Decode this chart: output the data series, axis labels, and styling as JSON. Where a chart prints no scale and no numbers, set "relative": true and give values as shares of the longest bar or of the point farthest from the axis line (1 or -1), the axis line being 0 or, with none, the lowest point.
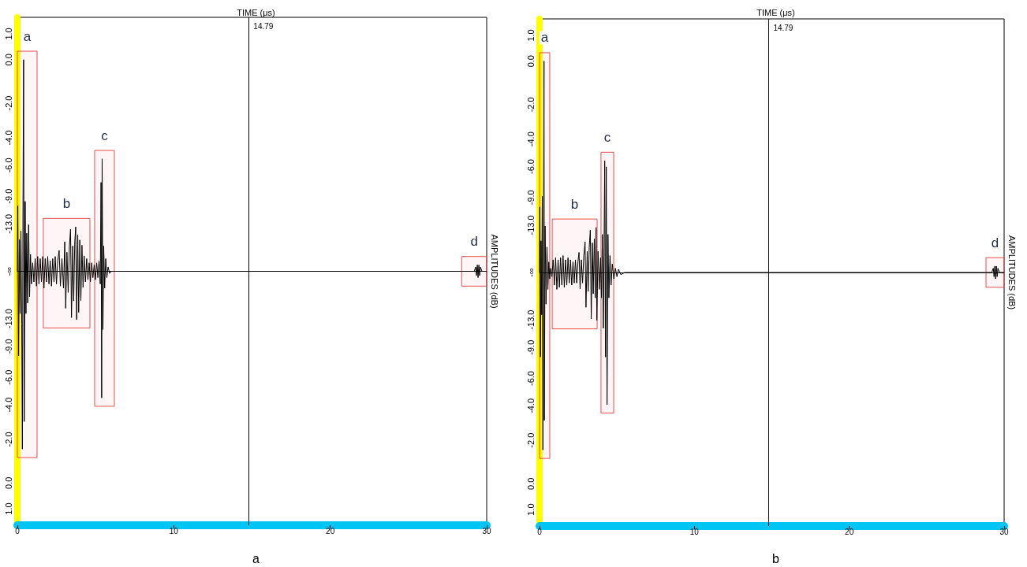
{
  "chart_data": [
    {
      "type": "line",
      "title": "a",
      "xlabel": "TIME (μs)",
      "ylabel": "AMPLITUDES (dB)",
      "xlim": [
        0,
        30
      ],
      "xticks": [
        0,
        10,
        20,
        30
      ],
      "relative": true,
      "annotations": [
        "1.0",
        "0.0",
        "-2.0",
        "-4.0",
        "-6.0",
        "-9.0",
        "-13.0",
        "-∞",
        "-13.0",
        "-9.0",
        "-6.0",
        "-4.0",
        "-2.0",
        "0.0",
        "1.0"
      ],
      "marker": "none",
      "line_style": "solid",
      "grid": false,
      "series": [
        {
          "color": "#000000",
          "x": [
            0,
            0.03,
            0.08,
            0.13,
            0.18,
            0.23,
            0.28,
            0.32,
            0.36,
            0.4,
            0.44,
            0.5,
            0.55,
            0.6,
            0.66,
            0.72,
            0.78,
            0.84,
            0.9,
            0.98,
            1.06,
            1.14,
            1.22,
            1.3,
            1.38,
            1.46,
            1.54,
            1.62,
            1.7,
            1.78,
            1.86,
            1.94,
            2.02,
            2.1,
            2.18,
            2.26,
            2.34,
            2.42,
            2.5,
            2.58,
            2.67,
            2.75,
            2.85,
            2.95,
            3.03,
            3.09,
            3.17,
            3.25,
            3.33,
            3.4,
            3.46,
            3.54,
            3.6,
            3.67,
            3.73,
            3.79,
            3.86,
            3.92,
            3.99,
            4.06,
            4.13,
            4.2,
            4.27,
            4.35,
            4.43,
            4.51,
            4.59,
            4.67,
            4.75,
            4.83,
            4.91,
            4.99,
            5.07,
            5.15,
            5.22,
            5.3,
            5.35,
            5.39,
            5.42,
            5.47,
            5.52,
            5.58,
            5.65,
            5.72,
            5.8,
            5.9,
            6.0,
            29.2,
            29.3,
            29.35,
            29.4,
            29.45,
            29.5,
            29.55,
            29.6,
            29.7,
            30
          ],
          "values": [
            0,
            0.31,
            -0.4,
            0.15,
            -0.2,
            0.19,
            -0.25,
            -0.84,
            0.3,
            1.0,
            -0.71,
            0.33,
            -0.2,
            0.18,
            -0.15,
            0.22,
            -0.12,
            0.08,
            -0.06,
            0.04,
            -0.05,
            0.06,
            -0.07,
            0.07,
            -0.06,
            0.06,
            -0.05,
            0.07,
            -0.08,
            0.06,
            -0.05,
            0.07,
            -0.06,
            0.05,
            -0.07,
            0.06,
            -0.05,
            0.07,
            -0.06,
            0.05,
            0.098,
            -0.07,
            0.06,
            -0.08,
            0.14,
            -0.175,
            0.09,
            -0.1,
            0.12,
            0.198,
            -0.219,
            0.12,
            -0.14,
            0.14,
            0.21,
            -0.228,
            0.173,
            -0.194,
            0.148,
            -0.138,
            0.123,
            -0.076,
            0.073,
            -0.05,
            0.06,
            -0.04,
            0.04,
            -0.05,
            0.04,
            -0.03,
            0.03,
            -0.04,
            0.04,
            -0.03,
            0.05,
            -0.06,
            0.42,
            -0.598,
            0.531,
            -0.275,
            0.12,
            -0.08,
            0.06,
            -0.03,
            0.02,
            -0.01,
            0,
            0,
            0.02,
            -0.02,
            0.03,
            -0.03,
            0.03,
            -0.02,
            0.02,
            0,
            0
          ]
        }
      ],
      "ref_lines": [
        {
          "axis": "x",
          "value": 14.79,
          "label": "14.79",
          "color": "#000000"
        },
        {
          "axis": "y",
          "value": 0,
          "color": "#000000"
        }
      ],
      "bands": [
        {
          "axis": "x",
          "from": 0,
          "to": 1.26,
          "label": "a",
          "color": "#e84c4c"
        },
        {
          "axis": "x",
          "from": 1.66,
          "to": 4.64,
          "label": "b",
          "color": "#e84c4c"
        },
        {
          "axis": "x",
          "from": 4.94,
          "to": 6.2,
          "label": "c",
          "color": "#e84c4c"
        },
        {
          "axis": "x",
          "from": 28.4,
          "to": 30,
          "label": "d",
          "color": "#e84c4c"
        }
      ]
    },
    {
      "type": "line",
      "title": "b",
      "xlabel": "TIME (μs)",
      "ylabel": "AMPLITUDES (dB)",
      "xlim": [
        0,
        30
      ],
      "xticks": [
        0,
        10,
        20,
        30
      ],
      "relative": true,
      "annotations": [
        "1.0",
        "0.0",
        "-2.0",
        "-4.0",
        "-6.0",
        "-9.0",
        "-13.0",
        "-∞",
        "-13.0",
        "-9.0",
        "-6.0",
        "-4.0",
        "-2.0",
        "0.0",
        "1.0"
      ],
      "marker": "none",
      "line_style": "solid",
      "grid": false,
      "series": [
        {
          "color": "#000000",
          "x": [
            0,
            0.02,
            0.06,
            0.1,
            0.14,
            0.18,
            0.22,
            0.29,
            0.31,
            0.36,
            0.42,
            0.48,
            0.54,
            0.6,
            0.66,
            0.72,
            0.8,
            0.88,
            0.96,
            1.04,
            1.12,
            1.2,
            1.28,
            1.36,
            1.44,
            1.52,
            1.6,
            1.68,
            1.76,
            1.84,
            1.92,
            2.0,
            2.08,
            2.16,
            2.24,
            2.32,
            2.4,
            2.48,
            2.55,
            2.62,
            2.7,
            2.78,
            2.86,
            2.94,
            3.0,
            3.08,
            3.14,
            3.21,
            3.28,
            3.34,
            3.41,
            3.47,
            3.54,
            3.6,
            3.65,
            3.7,
            3.78,
            3.86,
            3.94,
            4.0,
            4.06,
            4.12,
            4.17,
            4.21,
            4.26,
            4.31,
            4.36,
            4.42,
            4.48,
            4.55,
            4.62,
            4.7,
            4.8,
            4.9,
            5.0,
            5.1,
            5.25,
            5.5,
            29.2,
            29.3,
            29.35,
            29.4,
            29.45,
            29.5,
            29.55,
            29.6,
            29.7,
            30
          ],
          "values": [
            0,
            0.31,
            -0.4,
            0.15,
            -0.2,
            0.36,
            -0.84,
            1.0,
            -0.7,
            0.22,
            -0.15,
            0.12,
            -0.08,
            0.05,
            -0.03,
            0.02,
            -0.02,
            0.06,
            -0.06,
            0.07,
            -0.08,
            0.06,
            -0.07,
            0.07,
            -0.06,
            0.08,
            -0.07,
            0.06,
            -0.06,
            0.07,
            -0.05,
            0.06,
            -0.06,
            0.05,
            -0.05,
            0.06,
            -0.05,
            0.05,
            0.095,
            -0.078,
            0.06,
            -0.05,
            0.08,
            0.145,
            -0.165,
            0.1,
            -0.09,
            0.12,
            0.2,
            -0.22,
            0.14,
            -0.1,
            0.16,
            -0.12,
            0.213,
            -0.227,
            0.1,
            -0.08,
            0.07,
            -0.12,
            0.18,
            -0.264,
            0.145,
            0.529,
            -0.4,
            0.5,
            -0.625,
            0.18,
            -0.12,
            0.08,
            -0.06,
            0.04,
            -0.03,
            0.02,
            -0.02,
            0.015,
            -0.01,
            0,
            0,
            0.02,
            -0.02,
            0.03,
            -0.03,
            0.03,
            -0.02,
            0.02,
            0,
            0
          ]
        }
      ],
      "ref_lines": [
        {
          "axis": "x",
          "value": 14.79,
          "label": "14.79",
          "color": "#000000"
        },
        {
          "axis": "y",
          "value": 0,
          "color": "#000000"
        }
      ],
      "bands": [
        {
          "axis": "x",
          "from": 0,
          "to": 0.66,
          "label": "a",
          "color": "#e84c4c"
        },
        {
          "axis": "x",
          "from": 0.82,
          "to": 3.72,
          "label": "b",
          "color": "#e84c4c"
        },
        {
          "axis": "x",
          "from": 3.97,
          "to": 4.79,
          "label": "c",
          "color": "#e84c4c"
        },
        {
          "axis": "x",
          "from": 28.83,
          "to": 30,
          "label": "d",
          "color": "#e84c4c"
        }
      ]
    }
  ]
}
